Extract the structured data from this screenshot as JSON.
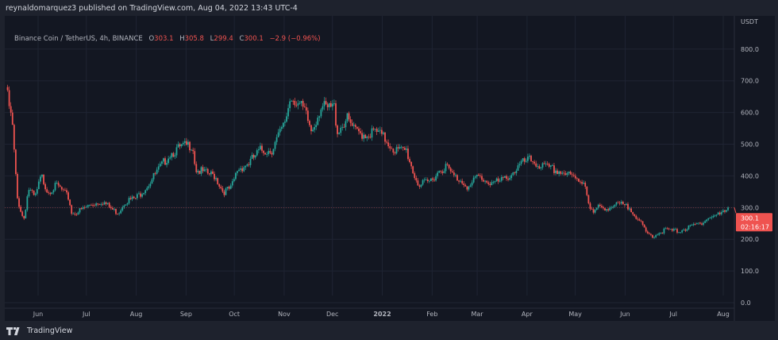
{
  "publisher_line": "reynaldomarquez3 published on TradingView.com, Aug 04, 2022 13:43 UTC-4",
  "legend": {
    "symbol": "Binance Coin / TetherUS, 4h, BINANCE",
    "open_label": "O",
    "open": "303.1",
    "high_label": "H",
    "high": "305.8",
    "low_label": "L",
    "low": "299.4",
    "close_label": "C",
    "close": "300.1",
    "change": "−2.9 (−0.96%)"
  },
  "footer": {
    "logo_icon": "tradingview-logo-icon",
    "brand": "TradingView"
  },
  "colors": {
    "up": "#26a69a",
    "down": "#ef5350",
    "background": "#131722",
    "grid": "#1f2433",
    "price_tag": "#ef5350"
  },
  "chart_data": {
    "type": "candlestick",
    "title": "Binance Coin / TetherUS, 4h, BINANCE",
    "y_unit": "USDT",
    "ylim": [
      0,
      900
    ],
    "y_ticks": [
      "0.0",
      "100.0",
      "200.0",
      "300.0",
      "400.0",
      "500.0",
      "600.0",
      "700.0",
      "800.0"
    ],
    "x_ticks": [
      {
        "label": "Jun",
        "date": "2021-06-01"
      },
      {
        "label": "Jul",
        "date": "2021-07-01"
      },
      {
        "label": "Aug",
        "date": "2021-08-01"
      },
      {
        "label": "Sep",
        "date": "2021-09-01"
      },
      {
        "label": "Oct",
        "date": "2021-10-01"
      },
      {
        "label": "Nov",
        "date": "2021-11-01"
      },
      {
        "label": "Dec",
        "date": "2021-12-01"
      },
      {
        "label": "2022",
        "date": "2022-01-01"
      },
      {
        "label": "Feb",
        "date": "2022-02-01"
      },
      {
        "label": "Mar",
        "date": "2022-03-01"
      },
      {
        "label": "Apr",
        "date": "2022-04-01"
      },
      {
        "label": "May",
        "date": "2022-05-01"
      },
      {
        "label": "Jun",
        "date": "2022-06-01"
      },
      {
        "label": "Jul",
        "date": "2022-07-01"
      },
      {
        "label": "Aug",
        "date": "2022-08-01"
      }
    ],
    "grid": true,
    "current_price": "300.1",
    "countdown": "02:16:17",
    "approx_closes": [
      [
        "2021-05-12",
        680
      ],
      [
        "2021-05-16",
        560
      ],
      [
        "2021-05-19",
        330
      ],
      [
        "2021-05-23",
        260
      ],
      [
        "2021-05-26",
        360
      ],
      [
        "2021-05-30",
        330
      ],
      [
        "2021-06-03",
        400
      ],
      [
        "2021-06-07",
        350
      ],
      [
        "2021-06-13",
        370
      ],
      [
        "2021-06-20",
        330
      ],
      [
        "2021-06-22",
        280
      ],
      [
        "2021-06-27",
        290
      ],
      [
        "2021-07-04",
        310
      ],
      [
        "2021-07-11",
        320
      ],
      [
        "2021-07-18",
        290
      ],
      [
        "2021-07-21",
        285
      ],
      [
        "2021-07-25",
        320
      ],
      [
        "2021-08-01",
        330
      ],
      [
        "2021-08-08",
        370
      ],
      [
        "2021-08-15",
        420
      ],
      [
        "2021-08-22",
        470
      ],
      [
        "2021-08-29",
        490
      ],
      [
        "2021-09-05",
        500
      ],
      [
        "2021-09-07",
        420
      ],
      [
        "2021-09-12",
        410
      ],
      [
        "2021-09-19",
        400
      ],
      [
        "2021-09-24",
        350
      ],
      [
        "2021-09-29",
        360
      ],
      [
        "2021-10-03",
        420
      ],
      [
        "2021-10-10",
        440
      ],
      [
        "2021-10-17",
        480
      ],
      [
        "2021-10-24",
        480
      ],
      [
        "2021-10-28",
        520
      ],
      [
        "2021-11-01",
        560
      ],
      [
        "2021-11-05",
        650
      ],
      [
        "2021-11-08",
        640
      ],
      [
        "2021-11-14",
        600
      ],
      [
        "2021-11-18",
        540
      ],
      [
        "2021-11-24",
        620
      ],
      [
        "2021-11-28",
        610
      ],
      [
        "2021-12-02",
        620
      ],
      [
        "2021-12-04",
        540
      ],
      [
        "2021-12-10",
        580
      ],
      [
        "2021-12-15",
        540
      ],
      [
        "2021-12-22",
        530
      ],
      [
        "2021-12-28",
        540
      ],
      [
        "2022-01-02",
        520
      ],
      [
        "2022-01-09",
        480
      ],
      [
        "2022-01-16",
        480
      ],
      [
        "2022-01-21",
        400
      ],
      [
        "2022-01-24",
        370
      ],
      [
        "2022-01-30",
        380
      ],
      [
        "2022-02-06",
        420
      ],
      [
        "2022-02-10",
        430
      ],
      [
        "2022-02-14",
        400
      ],
      [
        "2022-02-21",
        380
      ],
      [
        "2022-02-24",
        360
      ],
      [
        "2022-03-01",
        400
      ],
      [
        "2022-03-08",
        380
      ],
      [
        "2022-03-15",
        380
      ],
      [
        "2022-03-22",
        405
      ],
      [
        "2022-03-29",
        440
      ],
      [
        "2022-04-03",
        450
      ],
      [
        "2022-04-10",
        430
      ],
      [
        "2022-04-17",
        420
      ],
      [
        "2022-04-24",
        410
      ],
      [
        "2022-05-01",
        390
      ],
      [
        "2022-05-07",
        380
      ],
      [
        "2022-05-10",
        300
      ],
      [
        "2022-05-12",
        280
      ],
      [
        "2022-05-15",
        300
      ],
      [
        "2022-05-22",
        300
      ],
      [
        "2022-05-29",
        310
      ],
      [
        "2022-06-05",
        295
      ],
      [
        "2022-06-12",
        240
      ],
      [
        "2022-06-14",
        220
      ],
      [
        "2022-06-18",
        210
      ],
      [
        "2022-06-26",
        230
      ],
      [
        "2022-07-03",
        225
      ],
      [
        "2022-07-10",
        235
      ],
      [
        "2022-07-17",
        250
      ],
      [
        "2022-07-24",
        270
      ],
      [
        "2022-07-31",
        280
      ],
      [
        "2022-08-04",
        300.1
      ]
    ]
  }
}
